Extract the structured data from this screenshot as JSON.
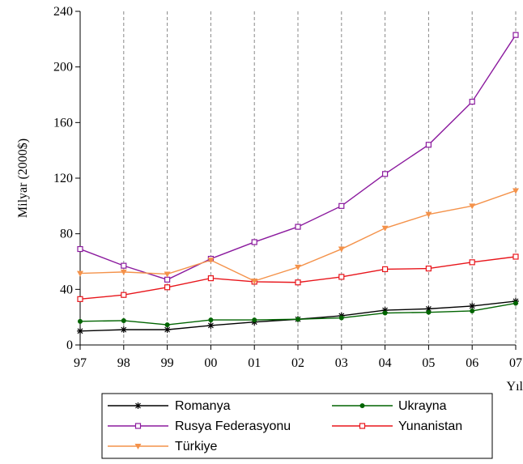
{
  "chart_data": {
    "type": "line",
    "title": "",
    "xlabel": "Yıl",
    "ylabel": "Milyar (2000$)",
    "categories": [
      "97",
      "98",
      "99",
      "00",
      "01",
      "02",
      "03",
      "04",
      "05",
      "06",
      "07"
    ],
    "ylim": [
      0,
      240
    ],
    "yticks": [
      0,
      40,
      80,
      120,
      160,
      200,
      240
    ],
    "grid": {
      "vertical": "dashed",
      "horizontal": false
    },
    "legend_position": "bottom",
    "series": [
      {
        "name": "Romanya",
        "color": "#000000",
        "marker": "star",
        "values": [
          10,
          11,
          11,
          14,
          16.5,
          18.5,
          21,
          25,
          26,
          28,
          31.5
        ]
      },
      {
        "name": "Ukrayna",
        "color": "#006400",
        "marker": "dot",
        "values": [
          17,
          17.5,
          14.5,
          18,
          18,
          18.5,
          19.5,
          23,
          23.5,
          24.5,
          30
        ]
      },
      {
        "name": "Rusya Federasyonu",
        "color": "#8B1A9E",
        "marker": "square",
        "values": [
          69,
          57,
          47,
          62,
          74,
          85,
          100,
          123,
          144,
          175,
          223
        ]
      },
      {
        "name": "Yunanistan",
        "color": "#E8151B",
        "marker": "square",
        "values": [
          33,
          36,
          41.5,
          48,
          45.5,
          45,
          49,
          54.5,
          55,
          59.5,
          63.5
        ]
      },
      {
        "name": "Türkiye",
        "color": "#F4924A",
        "marker": "triangle-down",
        "values": [
          51.5,
          52.5,
          51,
          61,
          46,
          56,
          69,
          84,
          94,
          100,
          111
        ]
      }
    ]
  }
}
